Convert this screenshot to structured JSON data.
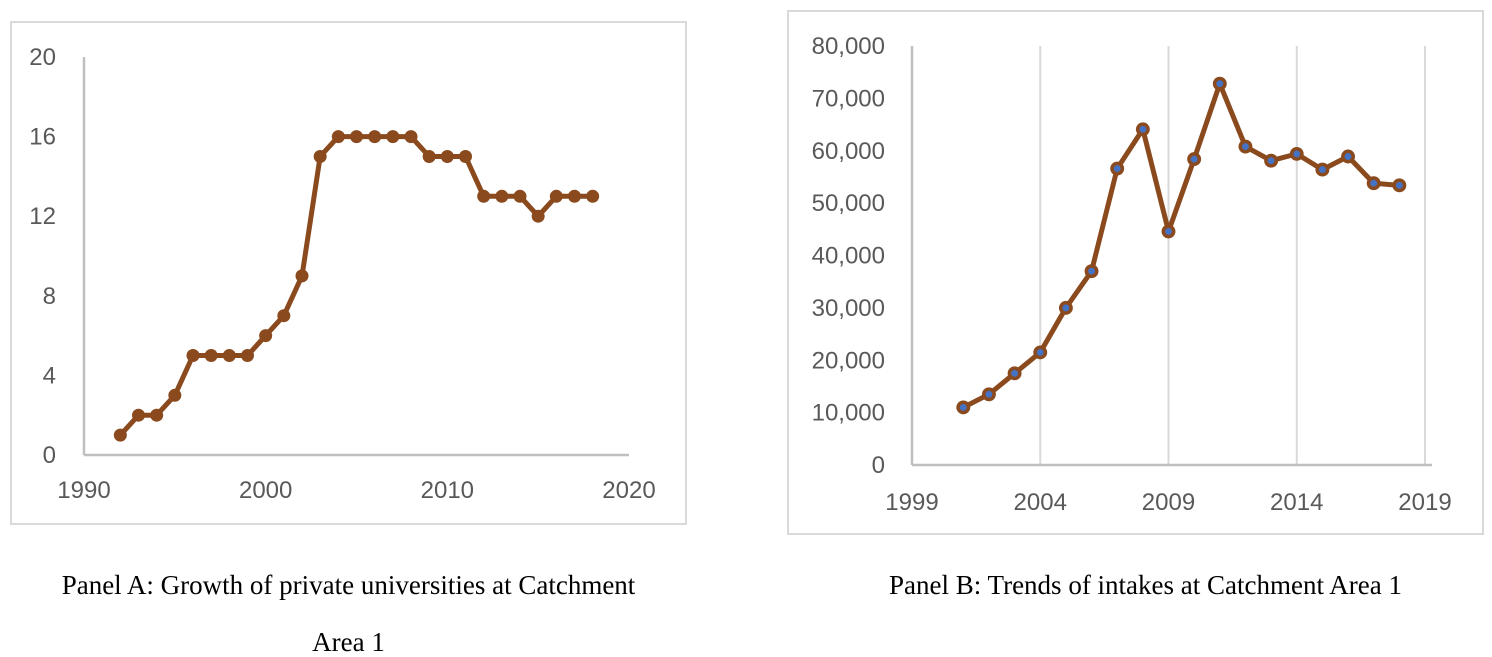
{
  "chart_data": [
    {
      "type": "line",
      "title": "Panel A: Growth of private universities at Catchment Area 1",
      "caption_lines": [
        "Panel A: Growth of private universities at Catchment",
        "Area 1"
      ],
      "series_name": "Private universities",
      "x": [
        1992,
        1993,
        1994,
        1995,
        1996,
        1997,
        1998,
        1999,
        2000,
        2001,
        2002,
        2003,
        2004,
        2005,
        2006,
        2007,
        2008,
        2009,
        2010,
        2011,
        2012,
        2013,
        2014,
        2015,
        2016,
        2017,
        2018
      ],
      "values": [
        1,
        2,
        2,
        3,
        5,
        5,
        5,
        5,
        6,
        7,
        9,
        15,
        16,
        16,
        16,
        16,
        16,
        15,
        15,
        15,
        13,
        13,
        13,
        12,
        13,
        13,
        13
      ],
      "xlim": [
        1990,
        2020
      ],
      "ylim": [
        0,
        20
      ],
      "x_ticks": [
        1990,
        2000,
        2010,
        2020
      ],
      "y_ticks": [
        0,
        4,
        8,
        12,
        16,
        20
      ],
      "y_tick_format": "plain",
      "grid_vertical": false,
      "legend": "none",
      "line_color": "#8a4a1e",
      "line_width": 5,
      "marker": {
        "r": 6.5,
        "fill": "#8a4a1e",
        "stroke": "none",
        "stroke_width": 0
      },
      "axis_color": "#bfbfbf",
      "grid_color": "#d9d9d9",
      "tick_label_color": "#595959"
    },
    {
      "type": "line",
      "title": "Panel B: Trends of intakes at Catchment Area 1",
      "caption_lines": [
        "Panel B: Trends of intakes at Catchment Area 1"
      ],
      "series_name": "Intakes",
      "x": [
        2001,
        2002,
        2003,
        2004,
        2005,
        2006,
        2007,
        2008,
        2009,
        2010,
        2011,
        2012,
        2013,
        2014,
        2015,
        2016,
        2017,
        2018
      ],
      "values": [
        11000,
        13500,
        17500,
        21500,
        30000,
        37000,
        56600,
        64100,
        44600,
        58400,
        72800,
        60800,
        58100,
        59400,
        56400,
        58900,
        53800,
        53400
      ],
      "xlim": [
        1999,
        2019
      ],
      "ylim": [
        0,
        80000
      ],
      "x_ticks": [
        1999,
        2004,
        2009,
        2014,
        2019
      ],
      "y_ticks": [
        0,
        10000,
        20000,
        30000,
        40000,
        50000,
        60000,
        70000,
        80000
      ],
      "y_tick_format": "comma",
      "grid_vertical": true,
      "legend": "none",
      "line_color": "#8a4a1e",
      "line_width": 5,
      "marker": {
        "r": 5.2,
        "fill": "#4472c4",
        "stroke": "#8a4a1e",
        "stroke_width": 3.5
      },
      "axis_color": "#bfbfbf",
      "grid_color": "#d9d9d9",
      "tick_label_color": "#595959"
    }
  ]
}
